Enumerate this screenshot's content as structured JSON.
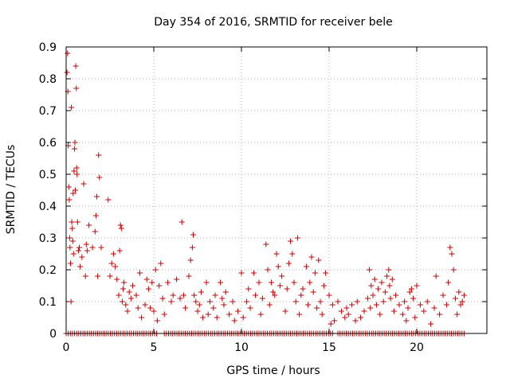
{
  "chart_data": {
    "type": "scatter",
    "title": "Day 354 of 2016, SRMTID for receiver bele",
    "xlabel": "GPS time / hours",
    "ylabel": "SRMTID / TECUs",
    "xlim": [
      0,
      24
    ],
    "ylim": [
      0,
      0.9
    ],
    "xticks": [
      0,
      5,
      10,
      15,
      20
    ],
    "yticks": [
      0,
      0.1,
      0.2,
      0.3,
      0.4,
      0.5,
      0.6,
      0.7,
      0.8,
      0.9
    ],
    "xtick_labels": [
      "0",
      "5",
      "10",
      "15",
      "20"
    ],
    "ytick_labels": [
      "0",
      "0.1",
      "0.2",
      "0.3",
      "0.4",
      "0.5",
      "0.6",
      "0.7",
      "0.8",
      "0.9"
    ],
    "grid": true,
    "marker": "+",
    "series": [
      {
        "name": "SRMTID",
        "color": "#cc0000",
        "points": [
          [
            0.05,
            0.82
          ],
          [
            0.08,
            0.88
          ],
          [
            0.1,
            0.76
          ],
          [
            0.12,
            0.59
          ],
          [
            0.15,
            0.46
          ],
          [
            0.18,
            0.42
          ],
          [
            0.2,
            0.3
          ],
          [
            0.22,
            0.27
          ],
          [
            0.25,
            0.22
          ],
          [
            0.28,
            0.1
          ],
          [
            0.3,
            0.71
          ],
          [
            0.32,
            0.35
          ],
          [
            0.35,
            0.33
          ],
          [
            0.38,
            0.29
          ],
          [
            0.4,
            0.44
          ],
          [
            0.42,
            0.25
          ],
          [
            0.45,
            0.51
          ],
          [
            0.48,
            0.58
          ],
          [
            0.5,
            0.6
          ],
          [
            0.52,
            0.45
          ],
          [
            0.55,
            0.84
          ],
          [
            0.58,
            0.77
          ],
          [
            0.6,
            0.52
          ],
          [
            0.62,
            0.5
          ],
          [
            0.65,
            0.35
          ],
          [
            0.7,
            0.26
          ],
          [
            0.75,
            0.27
          ],
          [
            0.8,
            0.21
          ],
          [
            0.9,
            0.24
          ],
          [
            1.0,
            0.47
          ],
          [
            1.1,
            0.18
          ],
          [
            1.15,
            0.28
          ],
          [
            1.2,
            0.26
          ],
          [
            1.3,
            0.34
          ],
          [
            1.5,
            0.27
          ],
          [
            1.65,
            0.32
          ],
          [
            1.7,
            0.37
          ],
          [
            1.75,
            0.43
          ],
          [
            1.8,
            0.18
          ],
          [
            1.85,
            0.56
          ],
          [
            1.9,
            0.49
          ],
          [
            2.0,
            0.27
          ],
          [
            2.4,
            0.42
          ],
          [
            2.5,
            0.18
          ],
          [
            2.6,
            0.22
          ],
          [
            2.7,
            0.25
          ],
          [
            2.8,
            0.21
          ],
          [
            2.9,
            0.17
          ],
          [
            3.0,
            0.12
          ],
          [
            3.05,
            0.26
          ],
          [
            3.1,
            0.34
          ],
          [
            3.15,
            0.33
          ],
          [
            3.2,
            0.1
          ],
          [
            3.25,
            0.14
          ],
          [
            3.3,
            0.16
          ],
          [
            3.4,
            0.09
          ],
          [
            3.5,
            0.07
          ],
          [
            3.6,
            0.13
          ],
          [
            3.7,
            0.11
          ],
          [
            3.8,
            0.15
          ],
          [
            4.0,
            0.12
          ],
          [
            4.1,
            0.08
          ],
          [
            4.2,
            0.19
          ],
          [
            4.3,
            0.05
          ],
          [
            4.5,
            0.09
          ],
          [
            4.6,
            0.17
          ],
          [
            4.7,
            0.14
          ],
          [
            4.8,
            0.08
          ],
          [
            4.9,
            0.16
          ],
          [
            5.0,
            0.07
          ],
          [
            5.1,
            0.2
          ],
          [
            5.2,
            0.04
          ],
          [
            5.3,
            0.15
          ],
          [
            5.4,
            0.22
          ],
          [
            5.5,
            0.11
          ],
          [
            5.6,
            0.06
          ],
          [
            5.8,
            0.16
          ],
          [
            6.0,
            0.1
          ],
          [
            6.1,
            0.12
          ],
          [
            6.3,
            0.17
          ],
          [
            6.5,
            0.11
          ],
          [
            6.6,
            0.35
          ],
          [
            6.7,
            0.12
          ],
          [
            6.8,
            0.08
          ],
          [
            7.0,
            0.18
          ],
          [
            7.1,
            0.23
          ],
          [
            7.2,
            0.27
          ],
          [
            7.25,
            0.31
          ],
          [
            7.3,
            0.12
          ],
          [
            7.4,
            0.1
          ],
          [
            7.5,
            0.07
          ],
          [
            7.6,
            0.09
          ],
          [
            7.7,
            0.13
          ],
          [
            7.8,
            0.05
          ],
          [
            8.0,
            0.16
          ],
          [
            8.1,
            0.06
          ],
          [
            8.2,
            0.1
          ],
          [
            8.4,
            0.08
          ],
          [
            8.5,
            0.12
          ],
          [
            8.6,
            0.05
          ],
          [
            8.8,
            0.16
          ],
          [
            8.9,
            0.11
          ],
          [
            9.0,
            0.09
          ],
          [
            9.1,
            0.13
          ],
          [
            9.3,
            0.06
          ],
          [
            9.5,
            0.1
          ],
          [
            9.6,
            0.04
          ],
          [
            9.8,
            0.07
          ],
          [
            10.0,
            0.19
          ],
          [
            10.1,
            0.05
          ],
          [
            10.3,
            0.1
          ],
          [
            10.4,
            0.14
          ],
          [
            10.5,
            0.08
          ],
          [
            10.7,
            0.19
          ],
          [
            10.8,
            0.12
          ],
          [
            11.0,
            0.16
          ],
          [
            11.1,
            0.06
          ],
          [
            11.2,
            0.11
          ],
          [
            11.4,
            0.28
          ],
          [
            11.5,
            0.2
          ],
          [
            11.6,
            0.09
          ],
          [
            11.7,
            0.16
          ],
          [
            11.8,
            0.13
          ],
          [
            11.9,
            0.12
          ],
          [
            12.0,
            0.25
          ],
          [
            12.1,
            0.21
          ],
          [
            12.2,
            0.15
          ],
          [
            12.3,
            0.18
          ],
          [
            12.5,
            0.07
          ],
          [
            12.6,
            0.14
          ],
          [
            12.7,
            0.22
          ],
          [
            12.8,
            0.29
          ],
          [
            12.9,
            0.25
          ],
          [
            13.0,
            0.16
          ],
          [
            13.1,
            0.1
          ],
          [
            13.2,
            0.3
          ],
          [
            13.3,
            0.06
          ],
          [
            13.4,
            0.12
          ],
          [
            13.5,
            0.14
          ],
          [
            13.7,
            0.21
          ],
          [
            13.8,
            0.09
          ],
          [
            13.9,
            0.16
          ],
          [
            14.0,
            0.24
          ],
          [
            14.1,
            0.13
          ],
          [
            14.2,
            0.19
          ],
          [
            14.3,
            0.08
          ],
          [
            14.4,
            0.23
          ],
          [
            14.5,
            0.1
          ],
          [
            14.6,
            0.06
          ],
          [
            14.7,
            0.15
          ],
          [
            14.8,
            0.19
          ],
          [
            15.0,
            0.12
          ],
          [
            15.1,
            0.03
          ],
          [
            15.2,
            0.09
          ],
          [
            15.3,
            0.04
          ],
          [
            15.5,
            0.1
          ],
          [
            15.7,
            0.07
          ],
          [
            15.9,
            0.05
          ],
          [
            16.0,
            0.08
          ],
          [
            16.1,
            0.06
          ],
          [
            16.3,
            0.09
          ],
          [
            16.5,
            0.04
          ],
          [
            16.6,
            0.1
          ],
          [
            16.8,
            0.05
          ],
          [
            17.0,
            0.07
          ],
          [
            17.2,
            0.11
          ],
          [
            17.3,
            0.2
          ],
          [
            17.35,
            0.08
          ],
          [
            17.4,
            0.15
          ],
          [
            17.5,
            0.12
          ],
          [
            17.6,
            0.17
          ],
          [
            17.7,
            0.09
          ],
          [
            17.8,
            0.14
          ],
          [
            17.9,
            0.06
          ],
          [
            18.0,
            0.16
          ],
          [
            18.1,
            0.1
          ],
          [
            18.2,
            0.13
          ],
          [
            18.3,
            0.18
          ],
          [
            18.4,
            0.2
          ],
          [
            18.45,
            0.15
          ],
          [
            18.5,
            0.11
          ],
          [
            18.6,
            0.17
          ],
          [
            18.7,
            0.07
          ],
          [
            18.8,
            0.12
          ],
          [
            19.0,
            0.09
          ],
          [
            19.2,
            0.06
          ],
          [
            19.3,
            0.1
          ],
          [
            19.4,
            0.04
          ],
          [
            19.5,
            0.08
          ],
          [
            19.6,
            0.13
          ],
          [
            19.7,
            0.14
          ],
          [
            19.8,
            0.11
          ],
          [
            19.9,
            0.05
          ],
          [
            20.0,
            0.15
          ],
          [
            20.2,
            0.09
          ],
          [
            20.4,
            0.07
          ],
          [
            20.6,
            0.1
          ],
          [
            20.8,
            0.03
          ],
          [
            21.0,
            0.08
          ],
          [
            21.1,
            0.18
          ],
          [
            21.3,
            0.06
          ],
          [
            21.5,
            0.12
          ],
          [
            21.7,
            0.09
          ],
          [
            21.8,
            0.16
          ],
          [
            21.9,
            0.27
          ],
          [
            22.0,
            0.25
          ],
          [
            22.1,
            0.2
          ],
          [
            22.2,
            0.11
          ],
          [
            22.3,
            0.06
          ],
          [
            22.4,
            0.13
          ],
          [
            22.5,
            0.09
          ],
          [
            22.6,
            0.1
          ],
          [
            22.7,
            0.12
          ]
        ],
        "zero_floor_x": [
          [
            0.0,
            5.2
          ],
          [
            5.6,
            15.3
          ],
          [
            15.5,
            17.2
          ],
          [
            17.3,
            22.7
          ]
        ]
      }
    ]
  }
}
